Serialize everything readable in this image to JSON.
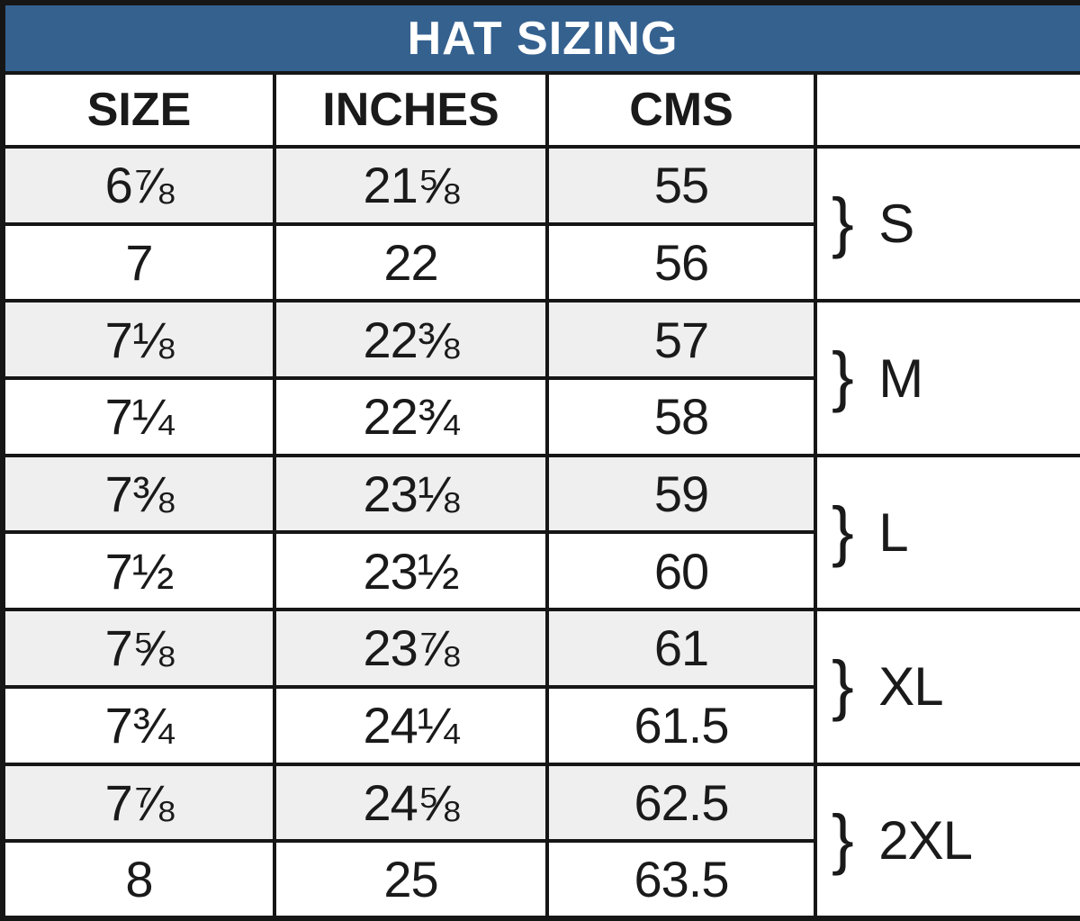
{
  "chart_data": {
    "type": "table",
    "title": "HAT SIZING",
    "column_headers": [
      "SIZE",
      "INCHES",
      "CMS",
      ""
    ],
    "rows": [
      {
        "size": "6⅞",
        "inches": "21⅝",
        "cms": "55"
      },
      {
        "size": "7",
        "inches": "22",
        "cms": "56"
      },
      {
        "size": "7⅛",
        "inches": "22⅜",
        "cms": "57"
      },
      {
        "size": "7¼",
        "inches": "22¾",
        "cms": "58"
      },
      {
        "size": "7⅜",
        "inches": "23⅛",
        "cms": "59"
      },
      {
        "size": "7½",
        "inches": "23½",
        "cms": "60"
      },
      {
        "size": "7⅝",
        "inches": "23⅞",
        "cms": "61"
      },
      {
        "size": "7¾",
        "inches": "24¼",
        "cms": "61.5"
      },
      {
        "size": "7⅞",
        "inches": "24⅝",
        "cms": "62.5"
      },
      {
        "size": "8",
        "inches": "25",
        "cms": "63.5"
      }
    ],
    "size_groups": [
      {
        "brace": "}",
        "label": "S",
        "covers_rows": [
          0,
          1
        ]
      },
      {
        "brace": "}",
        "label": "M",
        "covers_rows": [
          2,
          3
        ]
      },
      {
        "brace": "}",
        "label": "L",
        "covers_rows": [
          4,
          5
        ]
      },
      {
        "brace": "}",
        "label": "XL",
        "covers_rows": [
          6,
          7
        ]
      },
      {
        "brace": "}",
        "label": "2XL",
        "covers_rows": [
          8,
          9
        ]
      }
    ],
    "layout": {
      "alt_row_shading": "odd data rows shaded",
      "legend_position": "none",
      "grid": "all cell borders"
    }
  },
  "colors": {
    "title_bar_blue": "#35618f",
    "title_text": "#ffffff",
    "alt_row_gray": "#f0efef",
    "row_white": "#ffffff",
    "border_black": "#161616",
    "text_black": "#1a1a1a"
  }
}
